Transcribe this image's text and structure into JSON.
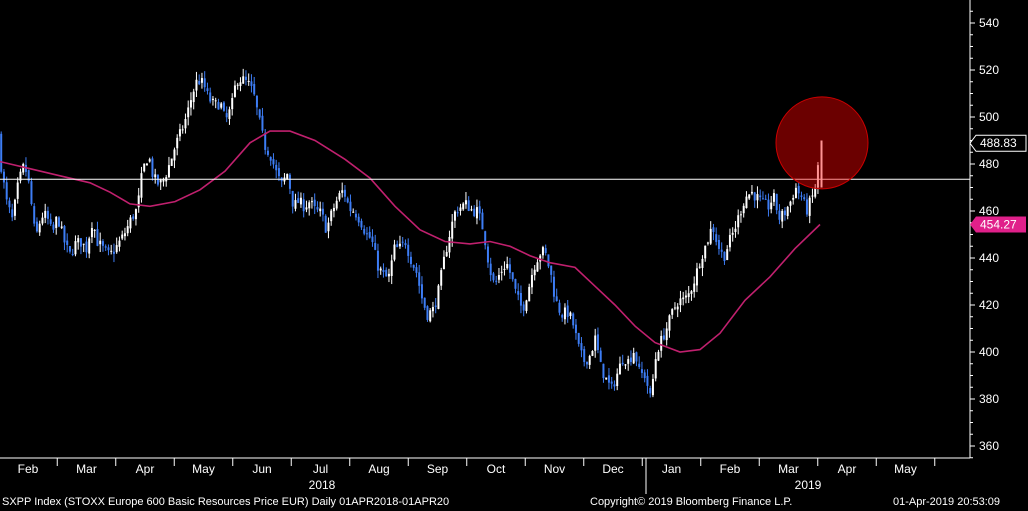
{
  "chart_data": {
    "type": "candlestick",
    "ylim": [
      350,
      550
    ],
    "yticks": [
      360,
      380,
      400,
      420,
      440,
      460,
      480,
      500,
      520,
      540
    ],
    "months": [
      "Feb",
      "Mar",
      "Apr",
      "May",
      "Jun",
      "Jul",
      "Aug",
      "Sep",
      "Oct",
      "Nov",
      "Dec",
      "Jan",
      "Feb",
      "Mar",
      "Apr",
      "May"
    ],
    "years": [
      "2018",
      "2019"
    ],
    "last_price": "488.83",
    "moving_average_last": "454.27",
    "resistance_level": 473.5,
    "price_path": [
      [
        0,
        492
      ],
      [
        3,
        478
      ],
      [
        8,
        464
      ],
      [
        14,
        456
      ],
      [
        20,
        472
      ],
      [
        26,
        480
      ],
      [
        31,
        470
      ],
      [
        37,
        448
      ],
      [
        43,
        458
      ],
      [
        48,
        458
      ],
      [
        54,
        450
      ],
      [
        59,
        458
      ],
      [
        65,
        448
      ],
      [
        71,
        441
      ],
      [
        77,
        446
      ],
      [
        82,
        447
      ],
      [
        88,
        444
      ],
      [
        94,
        456
      ],
      [
        99,
        447
      ],
      [
        106,
        443
      ],
      [
        111,
        441
      ],
      [
        117,
        444
      ],
      [
        123,
        448
      ],
      [
        128,
        452
      ],
      [
        133,
        457
      ],
      [
        139,
        461
      ],
      [
        144,
        477
      ],
      [
        150,
        484
      ],
      [
        155,
        474
      ],
      [
        161,
        471
      ],
      [
        166,
        474
      ],
      [
        172,
        481
      ],
      [
        177,
        488
      ],
      [
        183,
        494
      ],
      [
        188,
        500
      ],
      [
        194,
        510
      ],
      [
        199,
        516
      ],
      [
        205,
        514
      ],
      [
        210,
        508
      ],
      [
        216,
        505
      ],
      [
        222,
        506
      ],
      [
        227,
        498
      ],
      [
        233,
        504
      ],
      [
        238,
        516
      ],
      [
        244,
        516
      ],
      [
        250,
        514
      ],
      [
        255,
        510
      ],
      [
        261,
        498
      ],
      [
        266,
        488
      ],
      [
        272,
        484
      ],
      [
        278,
        476
      ],
      [
        283,
        471
      ],
      [
        289,
        476
      ],
      [
        295,
        462
      ],
      [
        300,
        464
      ],
      [
        306,
        462
      ],
      [
        311,
        464
      ],
      [
        317,
        460
      ],
      [
        323,
        459
      ],
      [
        328,
        452
      ],
      [
        334,
        460
      ],
      [
        340,
        466
      ],
      [
        345,
        469
      ],
      [
        351,
        461
      ],
      [
        356,
        460
      ],
      [
        362,
        456
      ],
      [
        368,
        450
      ],
      [
        373,
        448
      ],
      [
        379,
        437
      ],
      [
        384,
        433
      ],
      [
        390,
        431
      ],
      [
        396,
        444
      ],
      [
        401,
        444
      ],
      [
        407,
        447
      ],
      [
        412,
        440
      ],
      [
        418,
        434
      ],
      [
        424,
        422
      ],
      [
        429,
        416
      ],
      [
        435,
        418
      ],
      [
        440,
        426
      ],
      [
        446,
        440
      ],
      [
        452,
        452
      ],
      [
        457,
        460
      ],
      [
        463,
        462
      ],
      [
        468,
        463
      ],
      [
        474,
        460
      ],
      [
        479,
        460
      ],
      [
        485,
        452
      ],
      [
        491,
        436
      ],
      [
        496,
        428
      ],
      [
        502,
        434
      ],
      [
        508,
        438
      ],
      [
        513,
        432
      ],
      [
        518,
        424
      ],
      [
        524,
        418
      ],
      [
        530,
        427
      ],
      [
        535,
        436
      ],
      [
        541,
        442
      ],
      [
        546,
        443
      ],
      [
        552,
        434
      ],
      [
        557,
        422
      ],
      [
        563,
        416
      ],
      [
        569,
        417
      ],
      [
        574,
        413
      ],
      [
        580,
        402
      ],
      [
        585,
        396
      ],
      [
        591,
        398
      ],
      [
        597,
        406
      ],
      [
        602,
        394
      ],
      [
        608,
        388
      ],
      [
        613,
        384
      ],
      [
        619,
        391
      ],
      [
        625,
        398
      ],
      [
        630,
        396
      ],
      [
        636,
        401
      ],
      [
        641,
        391
      ],
      [
        647,
        390
      ],
      [
        652,
        380
      ],
      [
        658,
        400
      ],
      [
        664,
        406
      ],
      [
        669,
        411
      ],
      [
        675,
        418
      ],
      [
        680,
        422
      ],
      [
        686,
        422
      ],
      [
        691,
        425
      ],
      [
        697,
        432
      ],
      [
        702,
        440
      ],
      [
        708,
        446
      ],
      [
        714,
        454
      ],
      [
        719,
        446
      ],
      [
        725,
        440
      ],
      [
        730,
        446
      ],
      [
        736,
        452
      ],
      [
        742,
        460
      ],
      [
        747,
        466
      ],
      [
        753,
        468
      ],
      [
        758,
        466
      ],
      [
        764,
        463
      ],
      [
        770,
        462
      ],
      [
        775,
        466
      ],
      [
        781,
        457
      ],
      [
        786,
        459
      ],
      [
        792,
        464
      ],
      [
        797,
        470
      ],
      [
        803,
        466
      ],
      [
        808,
        460
      ],
      [
        814,
        466
      ],
      [
        818,
        472
      ],
      [
        822,
        488.83
      ]
    ],
    "ma_path": [
      [
        0,
        481
      ],
      [
        30,
        478
      ],
      [
        60,
        475
      ],
      [
        90,
        472
      ],
      [
        110,
        468
      ],
      [
        130,
        463
      ],
      [
        150,
        462
      ],
      [
        175,
        464
      ],
      [
        200,
        469
      ],
      [
        225,
        477
      ],
      [
        250,
        489
      ],
      [
        270,
        494
      ],
      [
        290,
        494
      ],
      [
        315,
        490
      ],
      [
        345,
        482
      ],
      [
        370,
        474
      ],
      [
        395,
        462
      ],
      [
        420,
        452
      ],
      [
        445,
        447
      ],
      [
        470,
        446
      ],
      [
        490,
        447
      ],
      [
        510,
        445
      ],
      [
        530,
        441
      ],
      [
        550,
        438
      ],
      [
        575,
        436
      ],
      [
        595,
        428
      ],
      [
        615,
        420
      ],
      [
        635,
        411
      ],
      [
        655,
        404
      ],
      [
        680,
        400
      ],
      [
        700,
        401
      ],
      [
        720,
        408
      ],
      [
        745,
        422
      ],
      [
        770,
        432
      ],
      [
        795,
        444
      ],
      [
        820,
        454.27
      ]
    ],
    "highlight": {
      "type": "circle",
      "center_value": 489,
      "color": "#ff0000"
    }
  },
  "footer": {
    "left": "SXPP Index (STOXX Europe 600 Basic Resources Price EUR)  Daily 01APR2018-01APR20",
    "center": "Copyright© 2019 Bloomberg Finance L.P.",
    "right": "01-Apr-2019 20:53:09"
  },
  "colors": {
    "background": "#000000",
    "up": "#ffffff",
    "down": "#3d7df5",
    "ma": "#c0206e",
    "ma_label_bg": "#e0208a",
    "axis": "#ffffff"
  }
}
